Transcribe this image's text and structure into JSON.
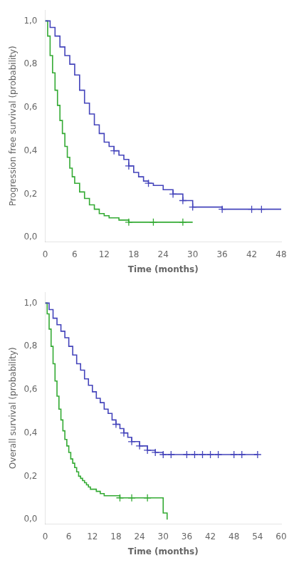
{
  "chart_data": [
    {
      "type": "line",
      "xlabel": "Time (months)",
      "ylabel": "Progression free survival (probability)",
      "xlim": [
        0,
        48
      ],
      "xticks": [
        0,
        6,
        12,
        18,
        24,
        30,
        36,
        42,
        48
      ],
      "ylim": [
        -0.02,
        1.05
      ],
      "yticks": [
        {
          "value": 0.0,
          "label": "0,0"
        },
        {
          "value": 0.2,
          "label": "0,2"
        },
        {
          "value": 0.4,
          "label": "0,4"
        },
        {
          "value": 0.6,
          "label": "0,6"
        },
        {
          "value": 0.8,
          "label": "0,8"
        },
        {
          "value": 1.0,
          "label": "1,0"
        }
      ],
      "grid": false,
      "series": [
        {
          "type": "line",
          "line_style": "step",
          "color": "#4444bb",
          "x": [
            0,
            1,
            2,
            3,
            4,
            5,
            6,
            7,
            8,
            9,
            10,
            11,
            12,
            13,
            14,
            15,
            16,
            17,
            18,
            19,
            20,
            21,
            22,
            24,
            26,
            28,
            30,
            32,
            36,
            42,
            44,
            48
          ],
          "values": [
            1.0,
            0.97,
            0.93,
            0.88,
            0.84,
            0.8,
            0.75,
            0.68,
            0.62,
            0.57,
            0.52,
            0.48,
            0.44,
            0.42,
            0.4,
            0.38,
            0.36,
            0.33,
            0.3,
            0.28,
            0.26,
            0.25,
            0.24,
            0.22,
            0.2,
            0.17,
            0.14,
            0.14,
            0.13,
            0.13,
            0.13,
            0.13
          ]
        },
        {
          "type": "line",
          "line_style": "step",
          "color": "#33aa33",
          "x": [
            0,
            0.5,
            1,
            1.5,
            2,
            2.5,
            3,
            3.5,
            4,
            4.5,
            5,
            5.5,
            6,
            7,
            8,
            9,
            10,
            11,
            12,
            13,
            14,
            15,
            16,
            17,
            18,
            21,
            25,
            30
          ],
          "values": [
            1.0,
            0.93,
            0.84,
            0.76,
            0.68,
            0.61,
            0.54,
            0.48,
            0.42,
            0.37,
            0.32,
            0.28,
            0.25,
            0.21,
            0.18,
            0.15,
            0.13,
            0.11,
            0.1,
            0.09,
            0.09,
            0.08,
            0.08,
            0.07,
            0.07,
            0.07,
            0.07,
            0.07
          ]
        },
        {
          "type": "scatter",
          "marker": "+",
          "color": "#4444bb",
          "x": [
            14,
            17,
            21,
            26,
            28,
            30,
            36,
            42,
            44
          ],
          "values": [
            0.4,
            0.33,
            0.25,
            0.2,
            0.17,
            0.14,
            0.13,
            0.13,
            0.13
          ]
        },
        {
          "type": "scatter",
          "marker": "+",
          "color": "#33aa33",
          "x": [
            17,
            22,
            28
          ],
          "values": [
            0.07,
            0.07,
            0.07
          ]
        }
      ]
    },
    {
      "type": "line",
      "xlabel": "Time (months)",
      "ylabel": "Overall survival (probability)",
      "xlim": [
        0,
        60
      ],
      "xticks": [
        0,
        6,
        12,
        18,
        24,
        30,
        36,
        42,
        48,
        54,
        60
      ],
      "ylim": [
        -0.02,
        1.05
      ],
      "yticks": [
        {
          "value": 0.0,
          "label": "0,0"
        },
        {
          "value": 0.2,
          "label": "0,2"
        },
        {
          "value": 0.4,
          "label": "0,4"
        },
        {
          "value": 0.6,
          "label": "0,6"
        },
        {
          "value": 0.8,
          "label": "0,8"
        },
        {
          "value": 1.0,
          "label": "1,0"
        }
      ],
      "grid": false,
      "series": [
        {
          "type": "line",
          "line_style": "step",
          "color": "#4444bb",
          "x": [
            0,
            1,
            2,
            3,
            4,
            5,
            6,
            7,
            8,
            9,
            10,
            11,
            12,
            13,
            14,
            15,
            16,
            17,
            18,
            19,
            20,
            21,
            22,
            24,
            26,
            28,
            30,
            32,
            36,
            38,
            40,
            42,
            44,
            48,
            50,
            54
          ],
          "values": [
            1.0,
            0.97,
            0.93,
            0.9,
            0.87,
            0.84,
            0.8,
            0.76,
            0.72,
            0.69,
            0.65,
            0.62,
            0.59,
            0.56,
            0.54,
            0.51,
            0.49,
            0.46,
            0.44,
            0.42,
            0.4,
            0.38,
            0.36,
            0.34,
            0.32,
            0.31,
            0.3,
            0.3,
            0.3,
            0.3,
            0.3,
            0.3,
            0.3,
            0.3,
            0.3,
            0.3
          ]
        },
        {
          "type": "line",
          "line_style": "step",
          "color": "#33aa33",
          "x": [
            0,
            0.5,
            1,
            1.5,
            2,
            2.5,
            3,
            3.5,
            4,
            4.5,
            5,
            5.5,
            6,
            6.5,
            7,
            7.5,
            8,
            8.5,
            9,
            9.5,
            10,
            10.5,
            11,
            11.5,
            12,
            13,
            14,
            15,
            16,
            17,
            18,
            19,
            20,
            21,
            22,
            24,
            26,
            28,
            30,
            31
          ],
          "values": [
            1.0,
            0.95,
            0.88,
            0.8,
            0.72,
            0.64,
            0.57,
            0.51,
            0.46,
            0.41,
            0.37,
            0.34,
            0.31,
            0.28,
            0.26,
            0.24,
            0.22,
            0.2,
            0.19,
            0.18,
            0.17,
            0.16,
            0.15,
            0.14,
            0.14,
            0.13,
            0.12,
            0.11,
            0.11,
            0.11,
            0.11,
            0.1,
            0.1,
            0.1,
            0.1,
            0.1,
            0.1,
            0.1,
            0.03,
            0.0
          ]
        },
        {
          "type": "scatter",
          "marker": "+",
          "color": "#4444bb",
          "x": [
            18,
            20,
            22,
            24,
            26,
            28,
            30,
            32,
            36,
            38,
            40,
            42,
            44,
            48,
            50,
            54
          ],
          "values": [
            0.44,
            0.4,
            0.36,
            0.34,
            0.32,
            0.31,
            0.3,
            0.3,
            0.3,
            0.3,
            0.3,
            0.3,
            0.3,
            0.3,
            0.3,
            0.3
          ]
        },
        {
          "type": "scatter",
          "marker": "+",
          "color": "#33aa33",
          "x": [
            19,
            22,
            26
          ],
          "values": [
            0.1,
            0.1,
            0.1
          ]
        }
      ]
    }
  ]
}
